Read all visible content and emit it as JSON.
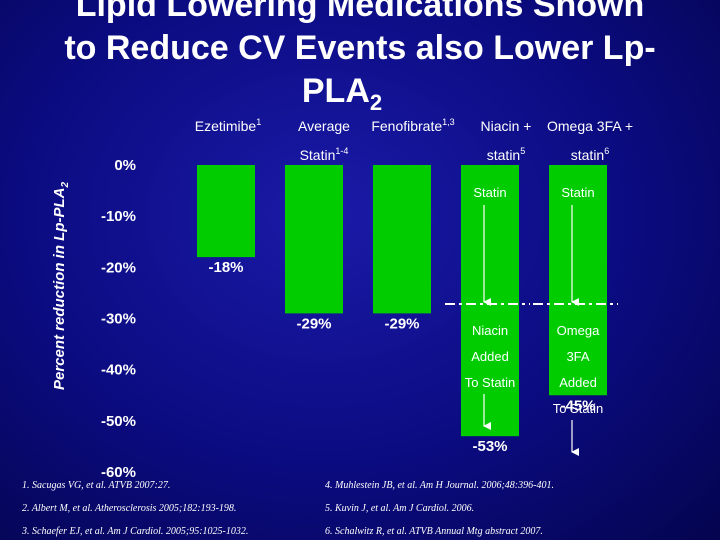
{
  "chart_data": {
    "type": "bar",
    "title": [
      "Lipid Lowering Medications Shown",
      "to Reduce CV Events also Lower Lp-",
      "PLA"
    ],
    "title_subscript": "2",
    "y_label": "Percent reduction in Lp-PLA",
    "y_label_subscript": "2",
    "categories": [
      "Ezetimibe",
      "Average Statin",
      "Fenofibrate",
      "Niacin + statin",
      "Omega 3FA + statin"
    ],
    "category_refs": [
      "1",
      "1-4",
      "1,3",
      "5",
      "6"
    ],
    "values": [
      -18,
      -29,
      -29,
      -53,
      -45
    ],
    "value_labels": [
      "-18%",
      "-29%",
      "-29%",
      "-53%",
      "-45%"
    ],
    "color": "#00cc00",
    "ylim": [
      -60,
      0
    ],
    "yticks": [
      {
        "value": 0,
        "label": "0%"
      },
      {
        "value": -10,
        "label": "-10%"
      },
      {
        "value": -20,
        "label": "-20%"
      },
      {
        "value": -30,
        "label": "-30%"
      },
      {
        "value": -40,
        "label": "-40%"
      },
      {
        "value": -50,
        "label": "-50%"
      },
      {
        "value": -60,
        "label": "-60%"
      }
    ],
    "grid": false,
    "annotations": [
      {
        "label": "Statin",
        "lines": [
          "Niacin",
          "Added",
          "To Statin"
        ]
      },
      {
        "label": "Statin",
        "lines": [
          "Omega",
          "3FA",
          "Added",
          "To Statin"
        ]
      }
    ],
    "references": [
      "1. Sacugas VG, et al. ATVB 2007:27.",
      "2. Albert M, et al. Atherosclerosis 2005;182:193-198.",
      "3. Schaefer EJ, et al. Am J Cardiol. 2005;95:1025-1032.",
      "4. Muhlestein JB, et al. Am H Journal. 2006;48:396-401.",
      "5. Kuvin J, et al. Am J Cardiol. 2006.",
      "6. Schalwitz R, et al. ATVB Annual Mtg abstract 2007."
    ]
  }
}
